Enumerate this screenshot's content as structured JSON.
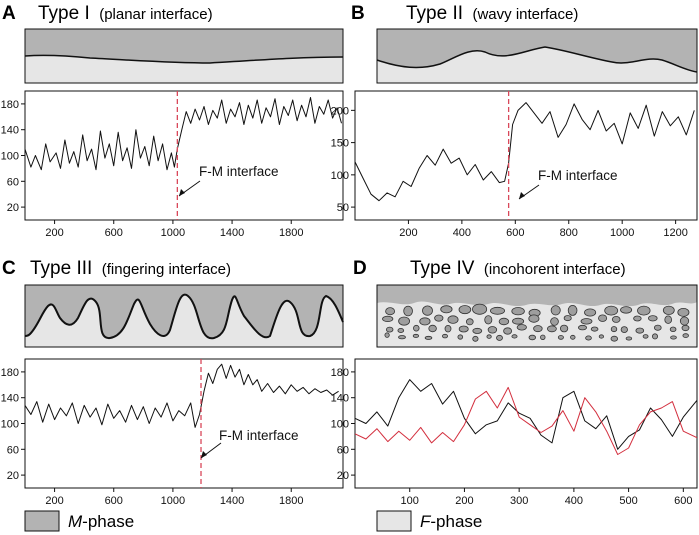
{
  "colors": {
    "m_phase": "#b3b3b3",
    "f_phase": "#e6e6e6",
    "signal": "#111111",
    "signal_alt": "#d32f3e",
    "interface_marker": "#d9485a"
  },
  "panels": [
    {
      "letter": "A",
      "title": "Type I",
      "subtitle": "(planar interface)",
      "annotation": "F-M interface"
    },
    {
      "letter": "B",
      "title": "Type II",
      "subtitle": "(wavy interface)",
      "annotation": "F-M interface"
    },
    {
      "letter": "C",
      "title": "Type III",
      "subtitle": "(fingering interface)",
      "annotation": "F-M interface"
    },
    {
      "letter": "D",
      "title": "Type IV",
      "subtitle": "(incohorent interface)",
      "annotation": ""
    }
  ],
  "legend": [
    {
      "symbol": "M",
      "suffix": "-phase"
    },
    {
      "symbol": "F",
      "suffix": "-phase"
    }
  ],
  "chart_data": [
    {
      "type": "line",
      "panel": "A",
      "xlim": [
        0,
        2150
      ],
      "ylim": [
        0,
        200
      ],
      "xticks": [
        200,
        600,
        1000,
        1400,
        1800
      ],
      "yticks": [
        20,
        60,
        100,
        140,
        180
      ],
      "interface_x": 1030,
      "series": [
        {
          "name": "signal",
          "color": "signal",
          "points": [
            [
              0,
              110
            ],
            [
              40,
              82
            ],
            [
              70,
              100
            ],
            [
              110,
              78
            ],
            [
              140,
              118
            ],
            [
              170,
              90
            ],
            [
              210,
              104
            ],
            [
              240,
              80
            ],
            [
              270,
              124
            ],
            [
              300,
              88
            ],
            [
              330,
              106
            ],
            [
              360,
              82
            ],
            [
              390,
              132
            ],
            [
              420,
              92
            ],
            [
              450,
              110
            ],
            [
              480,
              78
            ],
            [
              510,
              138
            ],
            [
              540,
              96
            ],
            [
              570,
              118
            ],
            [
              600,
              84
            ],
            [
              630,
              136
            ],
            [
              660,
              92
            ],
            [
              690,
              112
            ],
            [
              720,
              80
            ],
            [
              750,
              140
            ],
            [
              780,
              96
            ],
            [
              810,
              114
            ],
            [
              840,
              84
            ],
            [
              870,
              130
            ],
            [
              900,
              92
            ],
            [
              930,
              118
            ],
            [
              960,
              78
            ],
            [
              990,
              104
            ],
            [
              1010,
              82
            ],
            [
              1030,
              110
            ],
            [
              1060,
              140
            ],
            [
              1090,
              168
            ],
            [
              1120,
              150
            ],
            [
              1150,
              172
            ],
            [
              1180,
              155
            ],
            [
              1210,
              176
            ],
            [
              1240,
              148
            ],
            [
              1270,
              170
            ],
            [
              1300,
              158
            ],
            [
              1330,
              186
            ],
            [
              1360,
              150
            ],
            [
              1390,
              172
            ],
            [
              1420,
              160
            ],
            [
              1450,
              182
            ],
            [
              1480,
              148
            ],
            [
              1510,
              178
            ],
            [
              1540,
              158
            ],
            [
              1570,
              186
            ],
            [
              1600,
              150
            ],
            [
              1630,
              174
            ],
            [
              1660,
              160
            ],
            [
              1690,
              188
            ],
            [
              1720,
              148
            ],
            [
              1750,
              176
            ],
            [
              1780,
              162
            ],
            [
              1810,
              186
            ],
            [
              1840,
              154
            ],
            [
              1870,
              178
            ],
            [
              1900,
              160
            ],
            [
              1930,
              190
            ],
            [
              1960,
              150
            ],
            [
              1990,
              176
            ],
            [
              2020,
              164
            ],
            [
              2050,
              186
            ],
            [
              2080,
              158
            ],
            [
              2110,
              174
            ],
            [
              2140,
              150
            ]
          ]
        }
      ]
    },
    {
      "type": "line",
      "panel": "B",
      "xlim": [
        0,
        1280
      ],
      "ylim": [
        30,
        230
      ],
      "xticks": [
        200,
        400,
        600,
        800,
        1000,
        1200
      ],
      "yticks": [
        50,
        100,
        150,
        200
      ],
      "interface_x": 575,
      "series": [
        {
          "name": "signal",
          "color": "signal",
          "points": [
            [
              0,
              120
            ],
            [
              30,
              95
            ],
            [
              60,
              70
            ],
            [
              90,
              60
            ],
            [
              120,
              72
            ],
            [
              150,
              66
            ],
            [
              180,
              90
            ],
            [
              210,
              82
            ],
            [
              240,
              110
            ],
            [
              270,
              130
            ],
            [
              300,
              115
            ],
            [
              330,
              140
            ],
            [
              360,
              118
            ],
            [
              390,
              126
            ],
            [
              420,
              100
            ],
            [
              450,
              116
            ],
            [
              480,
              92
            ],
            [
              510,
              105
            ],
            [
              540,
              88
            ],
            [
              560,
              90
            ],
            [
              575,
              118
            ],
            [
              590,
              178
            ],
            [
              610,
              200
            ],
            [
              640,
              212
            ],
            [
              670,
              196
            ],
            [
              700,
              180
            ],
            [
              730,
              198
            ],
            [
              760,
              158
            ],
            [
              790,
              178
            ],
            [
              820,
              210
            ],
            [
              850,
              186
            ],
            [
              880,
              170
            ],
            [
              910,
              200
            ],
            [
              940,
              168
            ],
            [
              970,
              180
            ],
            [
              1000,
              148
            ],
            [
              1030,
              196
            ],
            [
              1060,
              172
            ],
            [
              1090,
              208
            ],
            [
              1120,
              160
            ],
            [
              1150,
              198
            ],
            [
              1180,
              176
            ],
            [
              1210,
              190
            ],
            [
              1240,
              162
            ],
            [
              1270,
              200
            ]
          ]
        }
      ]
    },
    {
      "type": "line",
      "panel": "C",
      "xlim": [
        0,
        2150
      ],
      "ylim": [
        0,
        200
      ],
      "xticks": [
        200,
        600,
        1000,
        1400,
        1800
      ],
      "yticks": [
        20,
        60,
        100,
        140,
        180
      ],
      "interface_x": 1190,
      "series": [
        {
          "name": "signal",
          "color": "signal",
          "points": [
            [
              0,
              128
            ],
            [
              40,
              114
            ],
            [
              80,
              134
            ],
            [
              120,
              102
            ],
            [
              160,
              130
            ],
            [
              200,
              106
            ],
            [
              240,
              124
            ],
            [
              280,
              112
            ],
            [
              320,
              132
            ],
            [
              360,
              100
            ],
            [
              400,
              128
            ],
            [
              440,
              110
            ],
            [
              480,
              124
            ],
            [
              520,
              98
            ],
            [
              560,
              130
            ],
            [
              600,
              108
            ],
            [
              640,
              120
            ],
            [
              680,
              102
            ],
            [
              720,
              128
            ],
            [
              760,
              106
            ],
            [
              800,
              126
            ],
            [
              840,
              100
            ],
            [
              880,
              124
            ],
            [
              920,
              110
            ],
            [
              960,
              132
            ],
            [
              1000,
              104
            ],
            [
              1040,
              120
            ],
            [
              1080,
              112
            ],
            [
              1120,
              132
            ],
            [
              1150,
              94
            ],
            [
              1180,
              114
            ],
            [
              1210,
              150
            ],
            [
              1240,
              178
            ],
            [
              1270,
              162
            ],
            [
              1300,
              184
            ],
            [
              1330,
              192
            ],
            [
              1360,
              170
            ],
            [
              1390,
              190
            ],
            [
              1420,
              172
            ],
            [
              1450,
              184
            ],
            [
              1480,
              160
            ],
            [
              1510,
              176
            ],
            [
              1540,
              160
            ],
            [
              1570,
              168
            ],
            [
              1600,
              150
            ],
            [
              1640,
              162
            ],
            [
              1680,
              148
            ],
            [
              1720,
              158
            ],
            [
              1760,
              146
            ],
            [
              1800,
              160
            ],
            [
              1840,
              150
            ],
            [
              1880,
              156
            ],
            [
              1920,
              146
            ],
            [
              1960,
              154
            ],
            [
              2000,
              148
            ],
            [
              2040,
              152
            ],
            [
              2080,
              144
            ],
            [
              2120,
              150
            ]
          ]
        }
      ]
    },
    {
      "type": "line",
      "panel": "D",
      "xlim": [
        0,
        625
      ],
      "ylim": [
        0,
        200
      ],
      "xticks": [
        100,
        200,
        300,
        400,
        500,
        600
      ],
      "yticks": [
        20,
        60,
        100,
        140,
        180
      ],
      "series": [
        {
          "name": "black trace",
          "color": "signal",
          "points": [
            [
              0,
              108
            ],
            [
              20,
              100
            ],
            [
              40,
              118
            ],
            [
              60,
              96
            ],
            [
              80,
              140
            ],
            [
              100,
              168
            ],
            [
              120,
              150
            ],
            [
              140,
              162
            ],
            [
              160,
              130
            ],
            [
              180,
              150
            ],
            [
              200,
              108
            ],
            [
              220,
              84
            ],
            [
              240,
              98
            ],
            [
              260,
              104
            ],
            [
              280,
              132
            ],
            [
              300,
              116
            ],
            [
              320,
              108
            ],
            [
              340,
              82
            ],
            [
              360,
              70
            ],
            [
              380,
              140
            ],
            [
              400,
              150
            ],
            [
              420,
              104
            ],
            [
              440,
              92
            ],
            [
              460,
              112
            ],
            [
              480,
              60
            ],
            [
              500,
              80
            ],
            [
              520,
              90
            ],
            [
              540,
              124
            ],
            [
              560,
              106
            ],
            [
              580,
              80
            ],
            [
              600,
              110
            ],
            [
              625,
              136
            ]
          ]
        },
        {
          "name": "red trace",
          "color": "signal_alt",
          "points": [
            [
              0,
              84
            ],
            [
              20,
              76
            ],
            [
              40,
              92
            ],
            [
              60,
              72
            ],
            [
              80,
              88
            ],
            [
              100,
              74
            ],
            [
              120,
              94
            ],
            [
              140,
              70
            ],
            [
              160,
              86
            ],
            [
              180,
              72
            ],
            [
              200,
              98
            ],
            [
              220,
              138
            ],
            [
              240,
              150
            ],
            [
              260,
              124
            ],
            [
              280,
              156
            ],
            [
              300,
              110
            ],
            [
              320,
              98
            ],
            [
              340,
              86
            ],
            [
              360,
              96
            ],
            [
              380,
              120
            ],
            [
              400,
              88
            ],
            [
              420,
              140
            ],
            [
              440,
              118
            ],
            [
              460,
              88
            ],
            [
              480,
              52
            ],
            [
              500,
              62
            ],
            [
              520,
              98
            ],
            [
              540,
              118
            ],
            [
              560,
              124
            ],
            [
              580,
              134
            ],
            [
              600,
              88
            ],
            [
              625,
              78
            ]
          ]
        }
      ]
    }
  ]
}
